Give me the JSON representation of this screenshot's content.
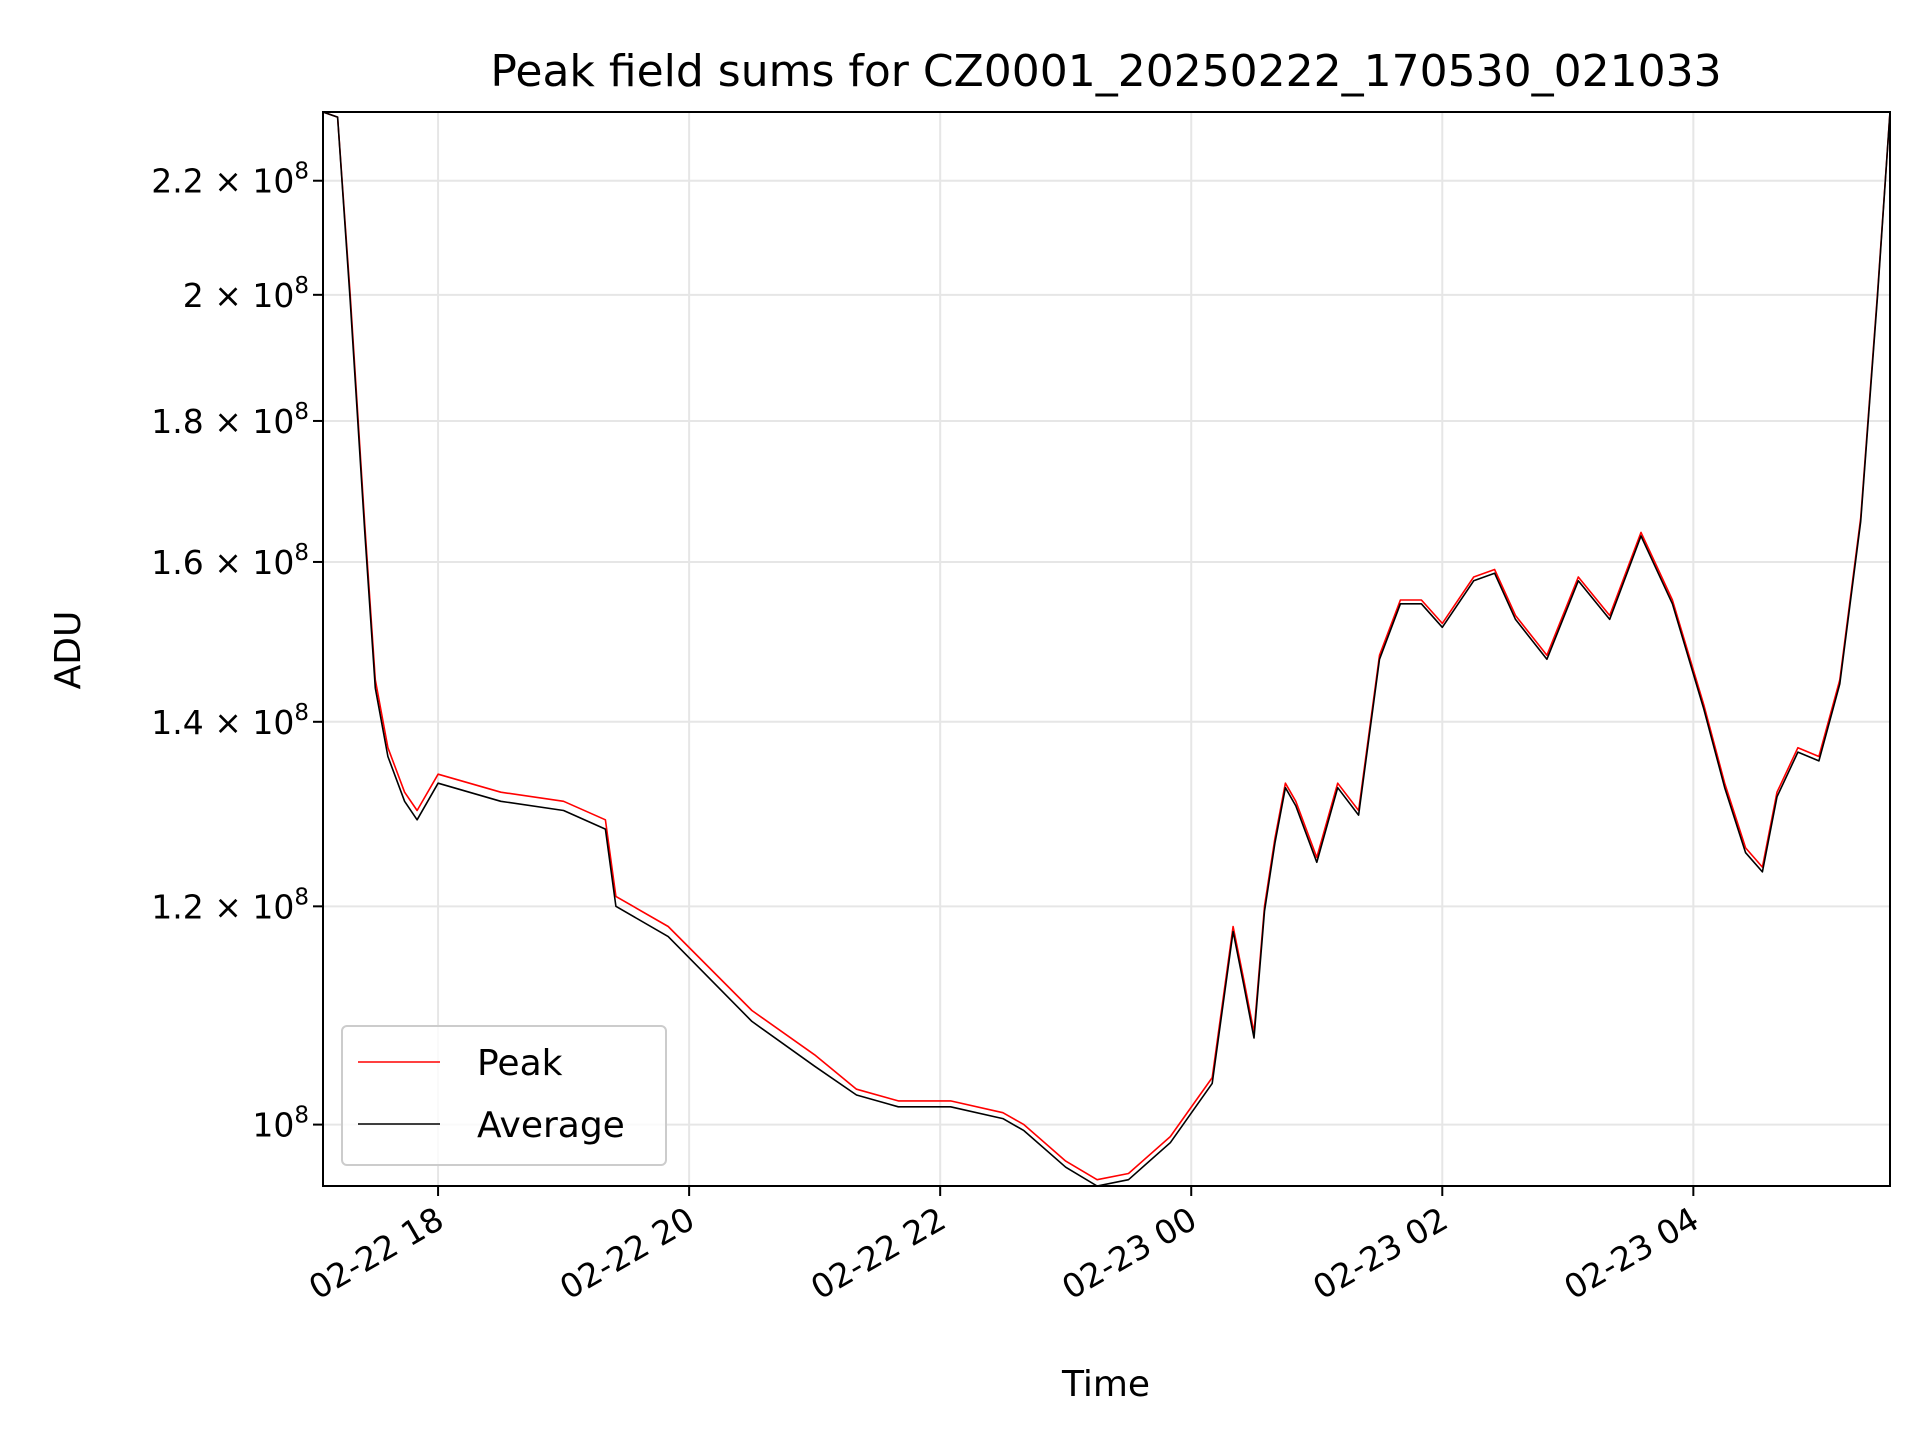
{
  "chart_data": {
    "type": "line",
    "title": "Peak field sums for CZ0001_20250222_170530_021033",
    "xlabel": "Time",
    "ylabel": "ADU",
    "y_scale": "log",
    "xlim": [
      "2025-02-22 17:05",
      "2025-02-23 05:34"
    ],
    "ylim": [
      95000000.0,
      233000000.0
    ],
    "x_ticks": [
      "02-22 18",
      "02-22 20",
      "02-22 22",
      "02-23 00",
      "02-23 02",
      "02-23 04"
    ],
    "y_ticks": [
      {
        "value": 100000000.0,
        "mant": "",
        "exp": "10",
        "sup": "8"
      },
      {
        "value": 120000000.0,
        "mant": "1.2",
        "exp": "10",
        "sup": "8"
      },
      {
        "value": 140000000.0,
        "mant": "1.4",
        "exp": "10",
        "sup": "8"
      },
      {
        "value": 160000000.0,
        "mant": "1.6",
        "exp": "10",
        "sup": "8"
      },
      {
        "value": 180000000.0,
        "mant": "1.8",
        "exp": "10",
        "sup": "8"
      },
      {
        "value": 200000000.0,
        "mant": "2",
        "exp": "10",
        "sup": "8"
      },
      {
        "value": 220000000.0,
        "mant": "2.2",
        "exp": "10",
        "sup": "8"
      }
    ],
    "grid": true,
    "legend_position": "lower-left",
    "series": [
      {
        "name": "Peak",
        "color": "#ff0000",
        "x": [
          "2025-02-22 17:05",
          "2025-02-22 17:12",
          "2025-02-22 17:18",
          "2025-02-22 17:25",
          "2025-02-22 17:30",
          "2025-02-22 17:36",
          "2025-02-22 17:44",
          "2025-02-22 17:50",
          "2025-02-22 18:00",
          "2025-02-22 18:30",
          "2025-02-22 19:00",
          "2025-02-22 19:20",
          "2025-02-22 19:25",
          "2025-02-22 19:50",
          "2025-02-22 20:30",
          "2025-02-22 21:00",
          "2025-02-22 21:20",
          "2025-02-22 21:40",
          "2025-02-22 22:05",
          "2025-02-22 22:30",
          "2025-02-22 22:40",
          "2025-02-22 23:00",
          "2025-02-22 23:15",
          "2025-02-22 23:30",
          "2025-02-22 23:50",
          "2025-02-23 00:10",
          "2025-02-23 00:20",
          "2025-02-23 00:25",
          "2025-02-23 00:30",
          "2025-02-23 00:35",
          "2025-02-23 00:40",
          "2025-02-23 00:45",
          "2025-02-23 00:50",
          "2025-02-23 01:00",
          "2025-02-23 01:10",
          "2025-02-23 01:20",
          "2025-02-23 01:30",
          "2025-02-23 01:40",
          "2025-02-23 01:50",
          "2025-02-23 02:00",
          "2025-02-23 02:15",
          "2025-02-23 02:25",
          "2025-02-23 02:35",
          "2025-02-23 02:50",
          "2025-02-23 03:05",
          "2025-02-23 03:20",
          "2025-02-23 03:35",
          "2025-02-23 03:50",
          "2025-02-23 04:05",
          "2025-02-23 04:15",
          "2025-02-23 04:25",
          "2025-02-23 04:33",
          "2025-02-23 04:40",
          "2025-02-23 04:50",
          "2025-02-23 05:00",
          "2025-02-23 05:10",
          "2025-02-23 05:20",
          "2025-02-23 05:28",
          "2025-02-23 05:34"
        ],
        "y": [
          233000000.0,
          232000000.0,
          200000000.0,
          165000000.0,
          145000000.0,
          137000000.0,
          132000000.0,
          130000000.0,
          134000000.0,
          132000000.0,
          131000000.0,
          129000000.0,
          121000000.0,
          118000000.0,
          110000000.0,
          106000000.0,
          103000000.0,
          102000000.0,
          102000000.0,
          101000000.0,
          100000000.0,
          97000000.0,
          95500000.0,
          96000000.0,
          99000000.0,
          104000000.0,
          118000000.0,
          113000000.0,
          108000000.0,
          120000000.0,
          127000000.0,
          133000000.0,
          131000000.0,
          125000000.0,
          133000000.0,
          130000000.0,
          148000000.0,
          155000000.0,
          155000000.0,
          152000000.0,
          158000000.0,
          159000000.0,
          153000000.0,
          148000000.0,
          158000000.0,
          153000000.0,
          164000000.0,
          155000000.0,
          142000000.0,
          133000000.0,
          126000000.0,
          124000000.0,
          132000000.0,
          137000000.0,
          136000000.0,
          145000000.0,
          166000000.0,
          200000000.0,
          233000000.0
        ]
      },
      {
        "name": "Average",
        "color": "#000000",
        "x": [
          "2025-02-22 17:05",
          "2025-02-22 17:12",
          "2025-02-22 17:18",
          "2025-02-22 17:25",
          "2025-02-22 17:30",
          "2025-02-22 17:36",
          "2025-02-22 17:44",
          "2025-02-22 17:50",
          "2025-02-22 18:00",
          "2025-02-22 18:30",
          "2025-02-22 19:00",
          "2025-02-22 19:20",
          "2025-02-22 19:25",
          "2025-02-22 19:50",
          "2025-02-22 20:30",
          "2025-02-22 21:00",
          "2025-02-22 21:20",
          "2025-02-22 21:40",
          "2025-02-22 22:05",
          "2025-02-22 22:30",
          "2025-02-22 22:40",
          "2025-02-22 23:00",
          "2025-02-22 23:15",
          "2025-02-22 23:30",
          "2025-02-22 23:50",
          "2025-02-23 00:10",
          "2025-02-23 00:20",
          "2025-02-23 00:25",
          "2025-02-23 00:30",
          "2025-02-23 00:35",
          "2025-02-23 00:40",
          "2025-02-23 00:45",
          "2025-02-23 00:50",
          "2025-02-23 01:00",
          "2025-02-23 01:10",
          "2025-02-23 01:20",
          "2025-02-23 01:30",
          "2025-02-23 01:40",
          "2025-02-23 01:50",
          "2025-02-23 02:00",
          "2025-02-23 02:15",
          "2025-02-23 02:25",
          "2025-02-23 02:35",
          "2025-02-23 02:50",
          "2025-02-23 03:05",
          "2025-02-23 03:20",
          "2025-02-23 03:35",
          "2025-02-23 03:50",
          "2025-02-23 04:05",
          "2025-02-23 04:15",
          "2025-02-23 04:25",
          "2025-02-23 04:33",
          "2025-02-23 04:40",
          "2025-02-23 04:50",
          "2025-02-23 05:00",
          "2025-02-23 05:10",
          "2025-02-23 05:20",
          "2025-02-23 05:28",
          "2025-02-23 05:34"
        ],
        "y": [
          233000000.0,
          232000000.0,
          199000000.0,
          164000000.0,
          144000000.0,
          136000000.0,
          131000000.0,
          129000000.0,
          133000000.0,
          131000000.0,
          130000000.0,
          128000000.0,
          120000000.0,
          117000000.0,
          109000000.0,
          105000000.0,
          102500000.0,
          101500000.0,
          101500000.0,
          100500000.0,
          99500000.0,
          96500000.0,
          95000000.0,
          95500000.0,
          98500000.0,
          103500000.0,
          117500000.0,
          112500000.0,
          107500000.0,
          119500000.0,
          126500000.0,
          132500000.0,
          130500000.0,
          124500000.0,
          132500000.0,
          129500000.0,
          147500000.0,
          154500000.0,
          154500000.0,
          151500000.0,
          157500000.0,
          158500000.0,
          152500000.0,
          147500000.0,
          157500000.0,
          152500000.0,
          163500000.0,
          154500000.0,
          141500000.0,
          132500000.0,
          125500000.0,
          123500000.0,
          131500000.0,
          136500000.0,
          135500000.0,
          144500000.0,
          165500000.0,
          199500000.0,
          233000000.0
        ]
      }
    ]
  }
}
